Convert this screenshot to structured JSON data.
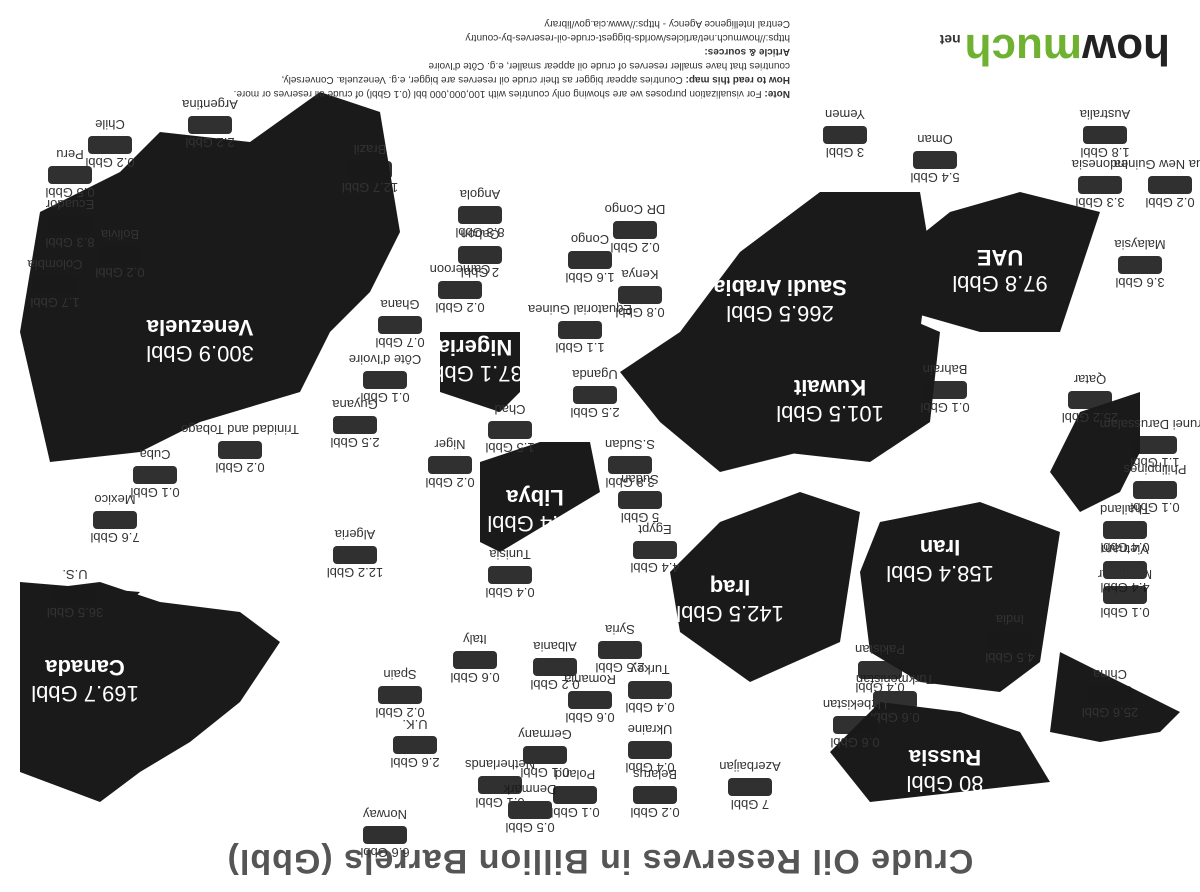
{
  "title": "Crude Oil Reserves in Billion Barrels (Gbbl)",
  "brand": {
    "how": "how",
    "much": "much",
    "net": "net"
  },
  "note": {
    "line1_label": "Note:",
    "line1": "For visualization purposes we are showing only countries with 100,000,000 bbl (0.1 Gbbl) of crude oil reserves or more.",
    "line2_label": "How to read this map:",
    "line2": "Countries appear bigger as their crude oil reserves are bigger, e.g. Venezuela. Conversely,",
    "line3": "countries that have smaller reserves of crude oil appear smaller, e.g. Côte d'Ivoire",
    "sources_label": "Article & sources:",
    "source1": "https://howmuch.net/articles/worlds-biggest-crude-oil-reserves-by-country",
    "source2": "Central Intelligence Agency - https://www.cia.gov/library"
  },
  "colors": {
    "land": "#1a1a1a",
    "label_light": "#ffffff",
    "label_dark": "#333333",
    "brand_green": "#6fb232"
  },
  "countries": [
    {
      "name": "Venezuela",
      "value": "300.9 Gbbl",
      "big": true
    },
    {
      "name": "Saudi Arabia",
      "value": "266.5 Gbbl",
      "big": true
    },
    {
      "name": "Canada",
      "value": "169.7 Gbbl",
      "big": true
    },
    {
      "name": "Iran",
      "value": "158.4 Gbbl",
      "big": true
    },
    {
      "name": "Iraq",
      "value": "142.5 Gbbl",
      "big": true
    },
    {
      "name": "Kuwait",
      "value": "101.5 Gbbl",
      "big": true
    },
    {
      "name": "UAE",
      "value": "97.8 Gbbl",
      "big": true
    },
    {
      "name": "Russia",
      "value": "80 Gbbl",
      "big": true
    },
    {
      "name": "Libya",
      "value": "48.4 Gbbl",
      "big": true
    },
    {
      "name": "Nigeria",
      "value": "37.1 Gbbl",
      "big": true
    },
    {
      "name": "U.S.",
      "value": "36.5 Gbbl",
      "big": false
    },
    {
      "name": "China",
      "value": "25.6 Gbbl",
      "big": false
    },
    {
      "name": "Qatar",
      "value": "25.2 Gbbl",
      "big": false
    },
    {
      "name": "Brazil",
      "value": "12.7 Gbbl",
      "big": false
    },
    {
      "name": "Algeria",
      "value": "12.2 Gbbl",
      "big": false
    },
    {
      "name": "Angola",
      "value": "8.3 Gbbl",
      "big": false
    },
    {
      "name": "Ecuador",
      "value": "8.3 Gbbl",
      "big": false
    },
    {
      "name": "Mexico",
      "value": "7.6 Gbbl",
      "big": false
    },
    {
      "name": "Azerbaijan",
      "value": "7 Gbbl",
      "big": false
    },
    {
      "name": "Norway",
      "value": "6.6 Gbbl",
      "big": false
    },
    {
      "name": "Oman",
      "value": "5.4 Gbbl",
      "big": false
    },
    {
      "name": "Sudan",
      "value": "5 Gbbl",
      "big": false
    },
    {
      "name": "India",
      "value": "4.5 Gbbl",
      "big": false
    },
    {
      "name": "Egypt",
      "value": "4.4 Gbbl",
      "big": false
    },
    {
      "name": "Vietnam",
      "value": "4.4 Gbbl",
      "big": false
    },
    {
      "name": "S.Sudan",
      "value": "3.8 Gbbl",
      "big": false
    },
    {
      "name": "Malaysia",
      "value": "3.6 Gbbl",
      "big": false
    },
    {
      "name": "Indonesia",
      "value": "3.3 Gbbl",
      "big": false
    },
    {
      "name": "Yemen",
      "value": "3 Gbbl",
      "big": false
    },
    {
      "name": "U.K.",
      "value": "2.6 Gbbl",
      "big": false
    },
    {
      "name": "Syria",
      "value": "2.5 Gbbl",
      "big": false
    },
    {
      "name": "Guyana",
      "value": "2.5 Gbbl",
      "big": false
    },
    {
      "name": "Uganda",
      "value": "2.5 Gbbl",
      "big": false
    },
    {
      "name": "Argentina",
      "value": "2.2 Gbbl",
      "big": false
    },
    {
      "name": "Gabon",
      "value": "2 Gbbl",
      "big": false
    },
    {
      "name": "Australia",
      "value": "1.8 Gbbl",
      "big": false
    },
    {
      "name": "Colombia",
      "value": "1.7 Gbbl",
      "big": false
    },
    {
      "name": "Congo",
      "value": "1.6 Gbbl",
      "big": false
    },
    {
      "name": "Chad",
      "value": "1.5 Gbbl",
      "big": false
    },
    {
      "name": "Brunei Darussalam",
      "value": "1.1 Gbbl",
      "big": false
    },
    {
      "name": "Equatorial Guinea",
      "value": "1.1 Gbbl",
      "big": false
    },
    {
      "name": "Kenya",
      "value": "0.8 Gbbl",
      "big": false
    },
    {
      "name": "Ghana",
      "value": "0.7 Gbbl",
      "big": false
    },
    {
      "name": "Italy",
      "value": "0.6 Gbbl",
      "big": false
    },
    {
      "name": "Romania",
      "value": "0.6 Gbbl",
      "big": false
    },
    {
      "name": "Turkmenistan",
      "value": "0.6 Gbbl",
      "big": false
    },
    {
      "name": "Uzbekistan",
      "value": "0.6 Gbbl",
      "big": false
    },
    {
      "name": "Peru",
      "value": "0.5 Gbbl",
      "big": false
    },
    {
      "name": "Denmark",
      "value": "0.5 Gbbl",
      "big": false
    },
    {
      "name": "Tunisia",
      "value": "0.4 Gbbl",
      "big": false
    },
    {
      "name": "Turkey",
      "value": "0.4 Gbbl",
      "big": false
    },
    {
      "name": "Ukraine",
      "value": "0.4 Gbbl",
      "big": false
    },
    {
      "name": "Thailand",
      "value": "0.4 Gbbl",
      "big": false
    },
    {
      "name": "Pakistan",
      "value": "0.4 Gbbl",
      "big": false
    },
    {
      "name": "Chile",
      "value": "0.2 Gbbl",
      "big": false
    },
    {
      "name": "Bolivia",
      "value": "0.2 Gbbl",
      "big": false
    },
    {
      "name": "Trinidad and Tobago",
      "value": "0.2 Gbbl",
      "big": false
    },
    {
      "name": "Niger",
      "value": "0.2 Gbbl",
      "big": false
    },
    {
      "name": "Cameroon",
      "value": "0.2 Gbbl",
      "big": false
    },
    {
      "name": "DR Congo",
      "value": "0.2 Gbbl",
      "big": false
    },
    {
      "name": "Albania",
      "value": "0.2 Gbbl",
      "big": false
    },
    {
      "name": "Spain",
      "value": "0.2 Gbbl",
      "big": false
    },
    {
      "name": "Belarus",
      "value": "0.2 Gbbl",
      "big": false
    },
    {
      "name": "Papua New Guinea",
      "value": "0.2 Gbbl",
      "big": false
    },
    {
      "name": "Cuba",
      "value": "0.1 Gbbl",
      "big": false
    },
    {
      "name": "Côte d'Ivoire",
      "value": "0.1 Gbbl",
      "big": false
    },
    {
      "name": "Germany",
      "value": "0.1 Gbbl",
      "big": false
    },
    {
      "name": "Netherlands",
      "value": "0.1 Gbbl",
      "big": false
    },
    {
      "name": "Poland",
      "value": "0.1 Gbbl",
      "big": false
    },
    {
      "name": "Bahrain",
      "value": "0.1 Gbbl",
      "big": false
    },
    {
      "name": "Philippines",
      "value": "0.1 Gbbl",
      "big": false
    },
    {
      "name": "Myanmar",
      "value": "0.1 Gbbl",
      "big": false
    }
  ]
}
